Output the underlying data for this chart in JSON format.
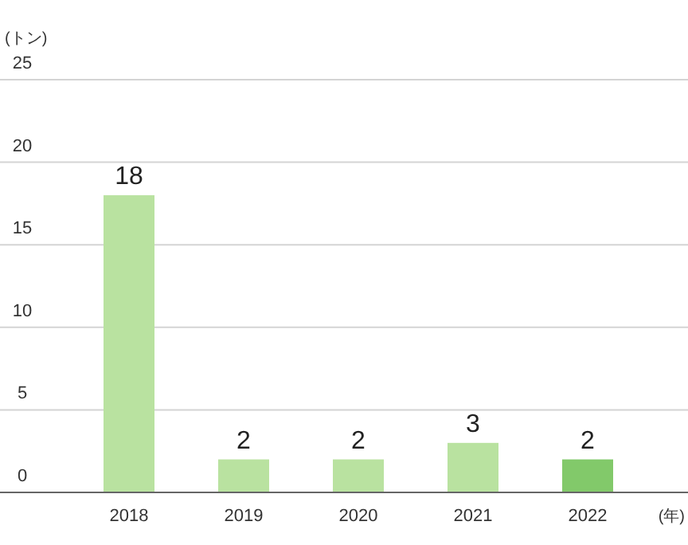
{
  "chart_data": {
    "type": "bar",
    "ylabel": "(トン)",
    "xlabel": "(年)",
    "categories": [
      "2018",
      "2019",
      "2020",
      "2021",
      "2022"
    ],
    "values": [
      18,
      2,
      2,
      3,
      2
    ],
    "colors": [
      "#b9e2a0",
      "#b9e2a0",
      "#b9e2a0",
      "#b9e2a0",
      "#82c96a"
    ],
    "ylim": [
      0,
      25
    ],
    "yticks": [
      0,
      5,
      10,
      15,
      20,
      25
    ],
    "grid": "y",
    "data_labels": true
  }
}
